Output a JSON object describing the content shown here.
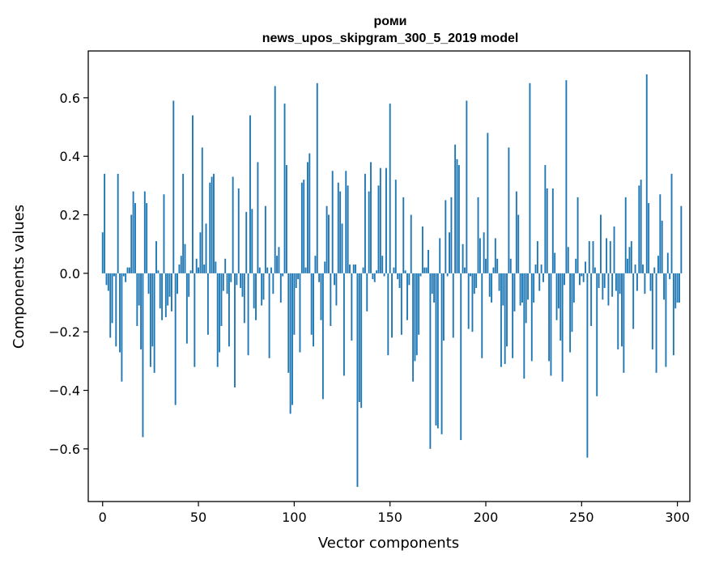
{
  "chart_data": {
    "type": "bar",
    "title": "роми",
    "subtitle": "news_upos_skipgram_300_5_2019 model",
    "xlabel": "Vector components",
    "ylabel": "Components values",
    "xlim": [
      -7.5,
      306.5
    ],
    "ylim": [
      -0.78,
      0.76
    ],
    "x_ticks": [
      0,
      50,
      100,
      150,
      200,
      250,
      300
    ],
    "x_tick_labels": [
      "0",
      "50",
      "100",
      "150",
      "200",
      "250",
      "300"
    ],
    "y_ticks": [
      -0.6,
      -0.4,
      -0.2,
      0.0,
      0.2,
      0.4,
      0.6
    ],
    "y_tick_labels": [
      "−0.6",
      "−0.4",
      "−0.2",
      "0.0",
      "0.2",
      "0.4",
      "0.6"
    ],
    "grid": false,
    "bar_color": "#1f77b4",
    "x_start": 0,
    "values": [
      0.14,
      0.34,
      -0.04,
      -0.06,
      -0.22,
      -0.17,
      -0.01,
      -0.25,
      0.34,
      -0.27,
      -0.37,
      -0.01,
      -0.03,
      0.02,
      0.02,
      0.2,
      0.28,
      0.24,
      -0.18,
      -0.11,
      -0.26,
      -0.56,
      0.28,
      0.24,
      -0.07,
      -0.32,
      -0.25,
      -0.34,
      0.11,
      0.01,
      -0.12,
      -0.16,
      0.27,
      -0.15,
      -0.11,
      -0.08,
      -0.13,
      0.59,
      -0.45,
      -0.07,
      0.03,
      0.06,
      0.34,
      0.1,
      -0.24,
      -0.08,
      0.01,
      0.54,
      -0.32,
      0.05,
      0.02,
      0.14,
      0.43,
      0.03,
      0.17,
      -0.21,
      0.31,
      0.33,
      0.34,
      0.04,
      -0.32,
      -0.27,
      -0.18,
      -0.06,
      0.05,
      -0.07,
      -0.25,
      -0.03,
      0.33,
      -0.39,
      -0.04,
      0.29,
      -0.05,
      -0.08,
      -0.17,
      0.21,
      -0.28,
      0.54,
      0.22,
      -0.12,
      -0.16,
      0.38,
      0.02,
      -0.11,
      -0.09,
      0.23,
      0.02,
      -0.29,
      0.02,
      -0.07,
      0.64,
      0.06,
      0.09,
      -0.1,
      -0.01,
      0.58,
      0.37,
      -0.34,
      -0.48,
      -0.45,
      -0.21,
      -0.05,
      -0.02,
      -0.27,
      0.31,
      0.32,
      0.02,
      0.38,
      0.41,
      -0.21,
      -0.25,
      0.06,
      0.65,
      -0.03,
      -0.16,
      -0.43,
      0.04,
      0.23,
      0.2,
      -0.18,
      0.35,
      -0.04,
      -0.11,
      0.31,
      0.28,
      0.17,
      -0.35,
      0.35,
      0.3,
      0.03,
      -0.23,
      0.03,
      0.03,
      -0.73,
      -0.44,
      -0.46,
      0.02,
      0.34,
      -0.13,
      0.28,
      0.38,
      -0.02,
      -0.03,
      0.01,
      0.3,
      0.36,
      0.06,
      -0.01,
      0.36,
      -0.28,
      0.58,
      -0.22,
      0.02,
      0.32,
      -0.02,
      -0.05,
      -0.21,
      0.26,
      0.01,
      -0.16,
      -0.04,
      0.2,
      -0.37,
      -0.3,
      -0.28,
      -0.21,
      -0.01,
      0.16,
      0.02,
      0.02,
      0.08,
      -0.6,
      -0.07,
      -0.1,
      -0.52,
      -0.53,
      0.12,
      -0.55,
      -0.23,
      0.25,
      -0.01,
      0.14,
      0.26,
      -0.22,
      0.44,
      0.39,
      0.37,
      -0.57,
      0.1,
      0.02,
      0.59,
      -0.19,
      -0.01,
      -0.2,
      -0.07,
      -0.05,
      0.26,
      0.12,
      -0.29,
      0.14,
      0.05,
      0.48,
      -0.08,
      -0.1,
      0.02,
      0.12,
      0.05,
      -0.06,
      -0.32,
      -0.11,
      -0.31,
      -0.25,
      0.43,
      0.05,
      -0.29,
      -0.13,
      0.28,
      0.2,
      -0.11,
      -0.1,
      -0.36,
      -0.17,
      -0.09,
      0.65,
      -0.3,
      -0.1,
      0.03,
      0.11,
      -0.06,
      0.03,
      -0.03,
      0.37,
      0.29,
      -0.3,
      -0.35,
      0.29,
      0.07,
      -0.16,
      -0.12,
      -0.23,
      -0.37,
      -0.04,
      0.66,
      0.09,
      -0.27,
      -0.2,
      -0.1,
      0.05,
      0.26,
      -0.04,
      -0.01,
      -0.03,
      0.04,
      -0.63,
      0.11,
      -0.18,
      0.11,
      0.02,
      -0.42,
      -0.05,
      0.2,
      -0.09,
      -0.05,
      0.12,
      -0.11,
      0.11,
      -0.08,
      0.16,
      -0.06,
      -0.26,
      -0.07,
      -0.25,
      -0.34,
      0.26,
      0.05,
      0.09,
      0.11,
      -0.19,
      0.03,
      -0.06,
      0.3,
      0.32,
      0.03,
      -0.07,
      0.68,
      0.24,
      -0.06,
      -0.26,
      0.02,
      -0.34,
      0.06,
      0.27,
      0.18,
      -0.09,
      -0.32,
      0.07,
      -0.02,
      0.34,
      -0.28,
      -0.12,
      -0.1,
      -0.1,
      0.23
    ]
  }
}
